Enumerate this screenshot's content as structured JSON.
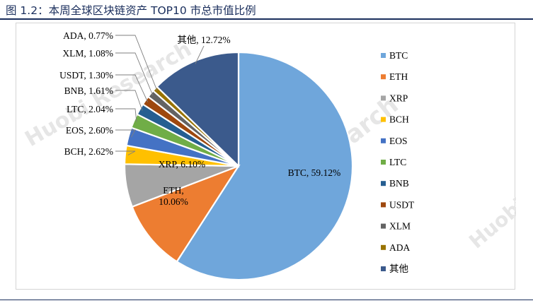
{
  "figure_title": "图 1.2：本周全球区块链资产 TOP10 市总市值比例",
  "watermark": "Huobi Research",
  "chart_data": {
    "type": "pie",
    "categories": [
      "BTC",
      "ETH",
      "XRP",
      "BCH",
      "EOS",
      "LTC",
      "BNB",
      "USDT",
      "XLM",
      "ADA",
      "其他"
    ],
    "values": [
      59.12,
      10.06,
      6.1,
      2.62,
      2.6,
      2.04,
      1.61,
      1.3,
      1.08,
      0.77,
      12.72
    ],
    "unit": "%",
    "data_labels": [
      "BTC, 59.12%",
      "ETH, 10.06%",
      "XRP, 6.10%",
      "BCH, 2.62%",
      "EOS, 2.60%",
      "LTC, 2.04%",
      "BNB, 1.61%",
      "USDT, 1.30%",
      "XLM, 1.08%",
      "ADA, 0.77%",
      "其他, 12.72%"
    ],
    "colors": [
      "#6fa6db",
      "#ed7d31",
      "#a5a5a5",
      "#ffc000",
      "#4472c4",
      "#70ad47",
      "#255e91",
      "#9e480e",
      "#636363",
      "#997300",
      "#3b5a8c"
    ],
    "start_angle_deg": 0,
    "direction": "clockwise",
    "legend": "right"
  }
}
